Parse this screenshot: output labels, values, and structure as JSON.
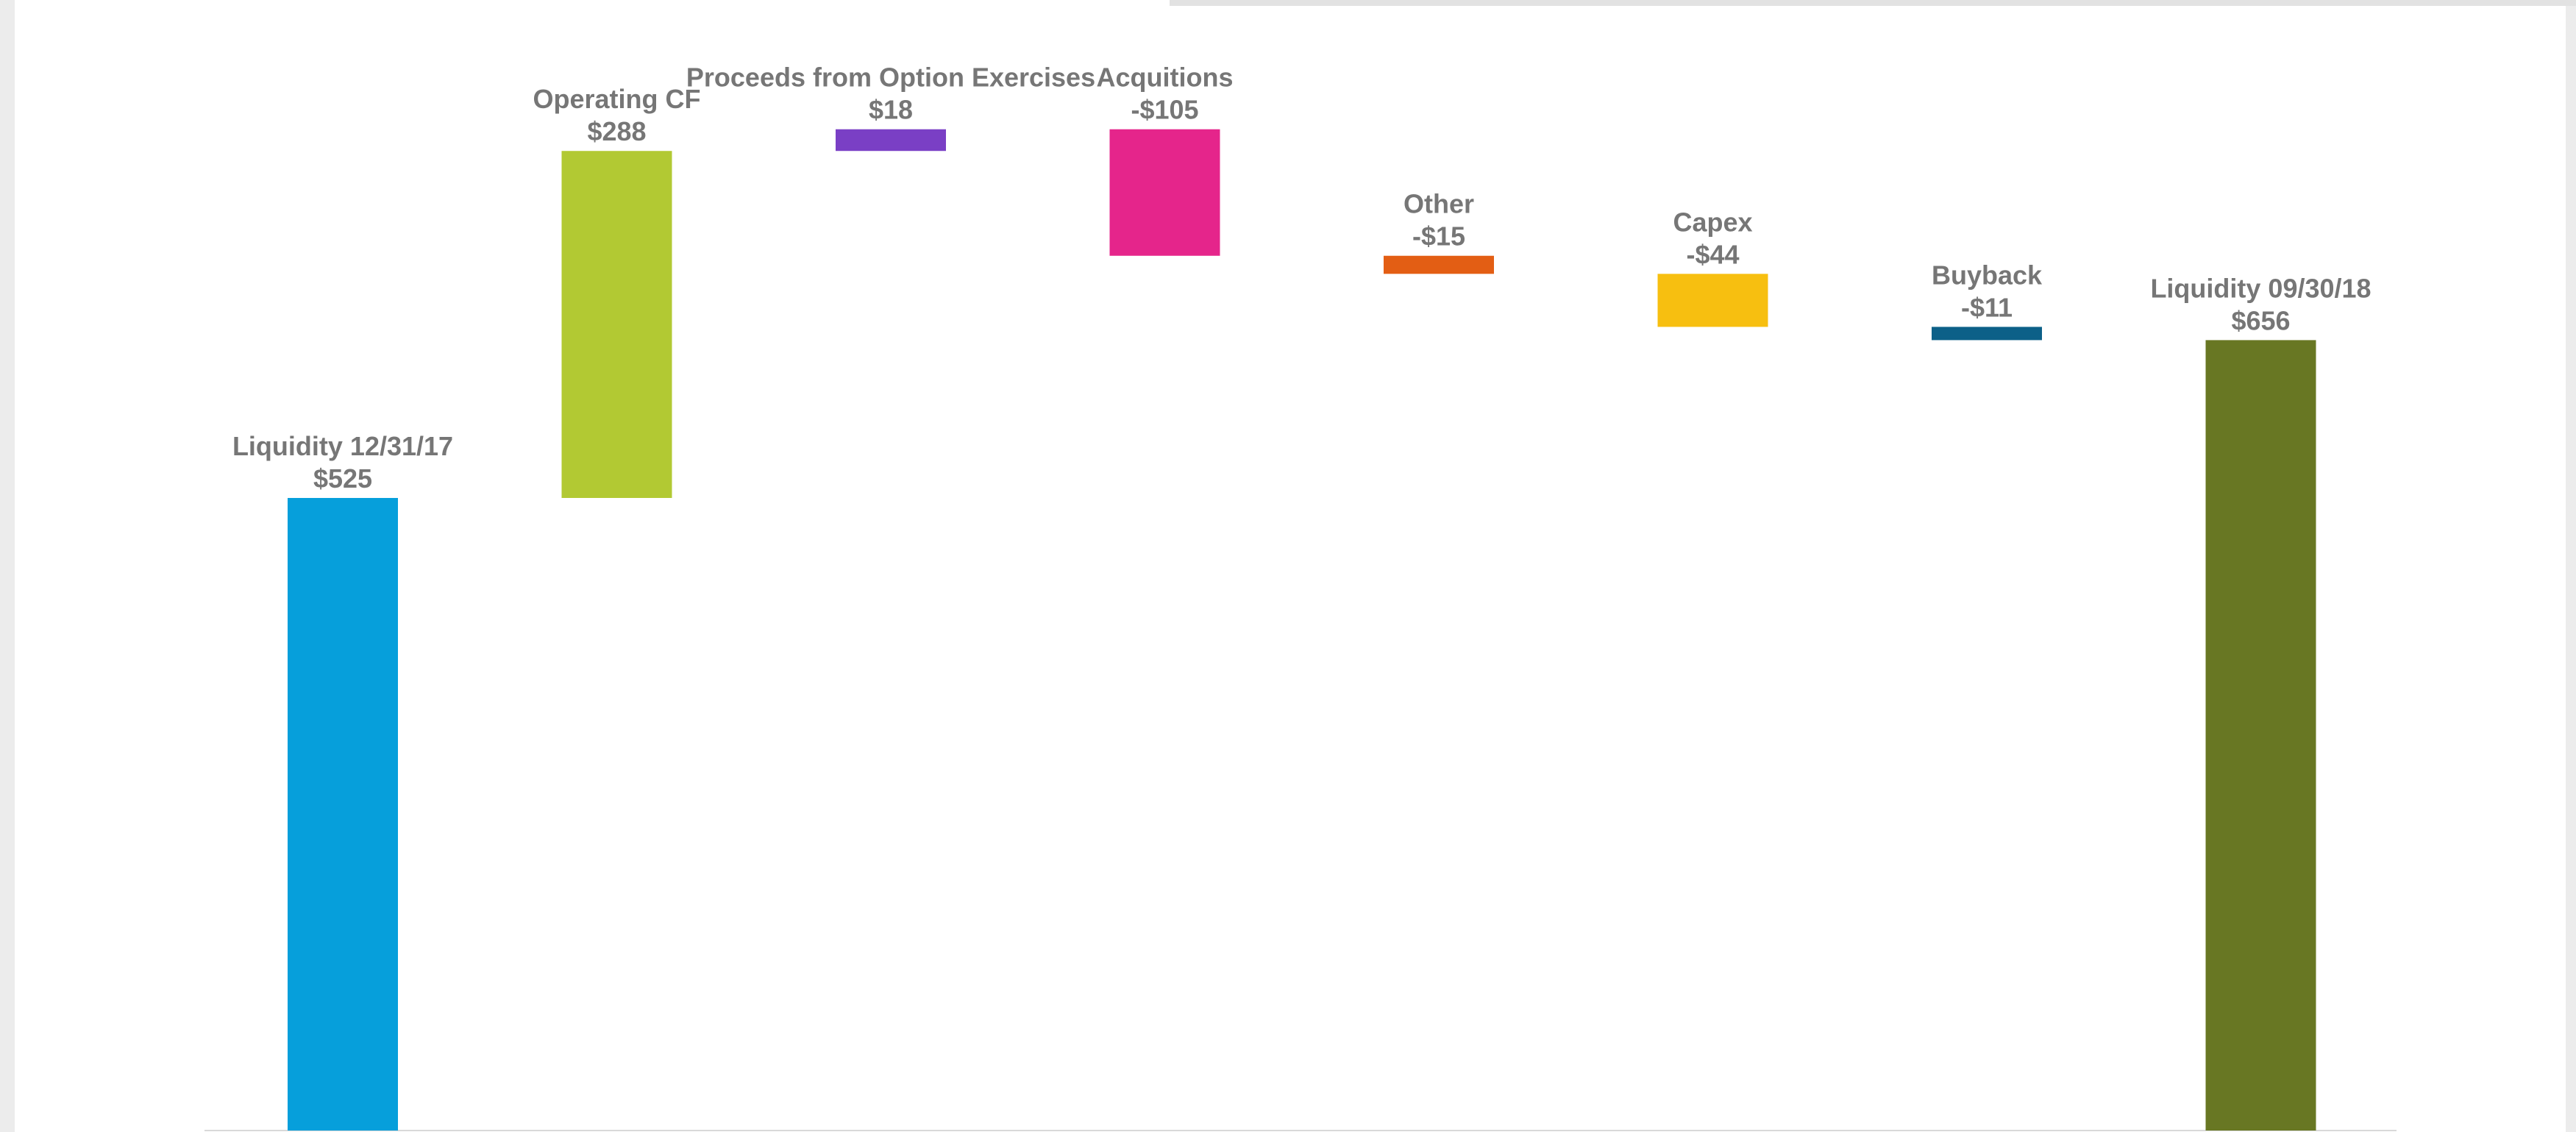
{
  "chart_data": {
    "type": "bar",
    "subtype": "waterfall",
    "title": "",
    "xlabel": "",
    "ylabel": "",
    "units": "$",
    "grid": false,
    "legend": "none",
    "categories": [
      "Liquidity 12/31/17",
      "Operating CF",
      "Proceeds from Option Exercises",
      "Acquitions",
      "Other",
      "Capex",
      "Buyback",
      "Liquidity 09/30/18"
    ],
    "values": [
      525,
      288,
      18,
      -105,
      -15,
      -44,
      -11,
      656
    ],
    "value_labels": [
      "$525",
      "$288",
      "$18",
      "-$105",
      "-$15",
      "-$44",
      "-$11",
      "$656"
    ],
    "kinds": [
      "total",
      "delta",
      "delta",
      "delta",
      "delta",
      "delta",
      "delta",
      "total"
    ],
    "colors": [
      "#069fdb",
      "#b2c933",
      "#7a3fc5",
      "#e5258b",
      "#e35e14",
      "#f7bf10",
      "#0c6088",
      "#687723"
    ],
    "ylim": [
      0,
      845
    ]
  }
}
